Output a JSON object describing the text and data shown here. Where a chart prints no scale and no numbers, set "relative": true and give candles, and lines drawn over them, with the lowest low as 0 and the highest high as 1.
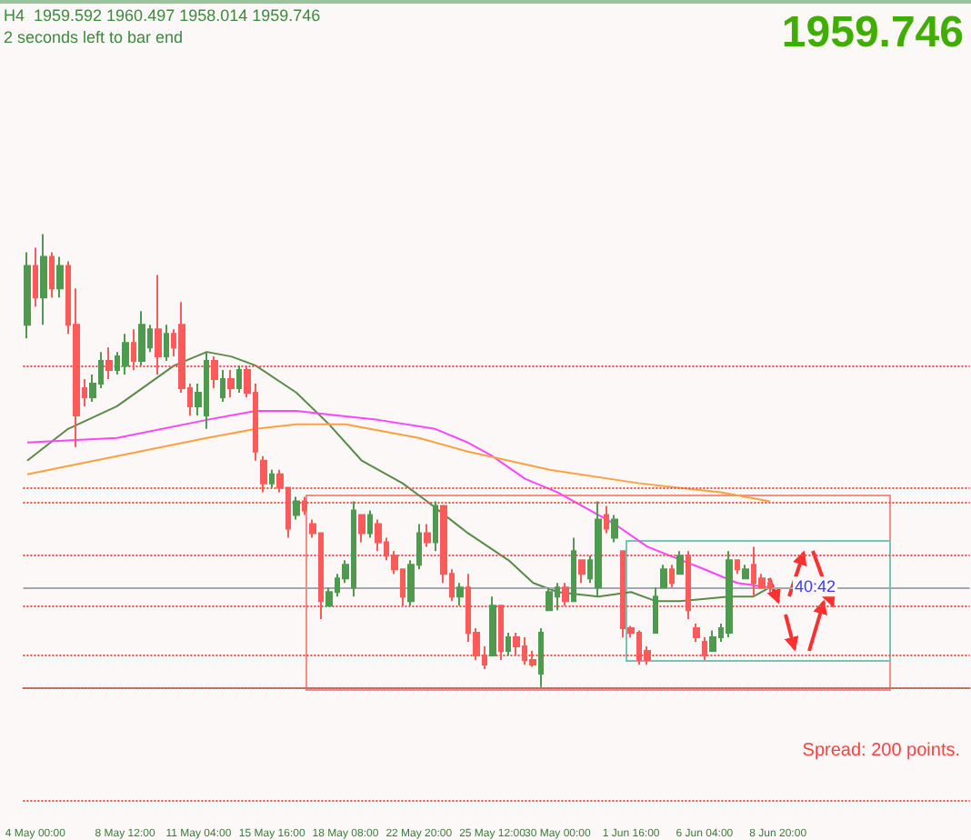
{
  "chart_data": {
    "type": "candlestick",
    "relative": true,
    "grid": false,
    "tick_labels": "x",
    "marker": "none",
    "annotations": [
      "H4  1959.592 1960.497 1958.014 1959.746",
      "2 seconds left to bar end",
      "1959.746",
      {
        "text": "40:42",
        "y": 0.22
      },
      "Spread: 200 points."
    ],
    "categories": [
      null,
      "4 May 00:00",
      null,
      null,
      null,
      null,
      null,
      null,
      null,
      null,
      null,
      null,
      "8 May 12:00",
      null,
      null,
      null,
      null,
      null,
      null,
      null,
      null,
      "11 May 04:00",
      null,
      null,
      null,
      null,
      null,
      null,
      null,
      null,
      "15 May 16:00",
      null,
      null,
      null,
      null,
      null,
      null,
      null,
      null,
      "18 May 08:00",
      null,
      null,
      null,
      null,
      null,
      null,
      null,
      null,
      "22 May 20:00",
      null,
      null,
      null,
      null,
      null,
      null,
      null,
      null,
      "25 May 12:00",
      null,
      null,
      null,
      null,
      null,
      null,
      null,
      "30 May 00:00",
      null,
      null,
      null,
      null,
      null,
      null,
      null,
      null,
      "1 Jun 16:00",
      null,
      null,
      null,
      null,
      null,
      null,
      null,
      null,
      "6 Jun 04:00",
      null,
      null,
      null,
      null,
      null,
      null,
      null,
      null,
      "8 Jun 20:00",
      null,
      null,
      null,
      null,
      null,
      null,
      null,
      null,
      null,
      null,
      null,
      null,
      null,
      null,
      null,
      null,
      null,
      null,
      null,
      null,
      null,
      null,
      null
    ],
    "ohlc": [
      [
        0.8,
        0.96,
        0.77,
        0.93
      ],
      [
        0.93,
        0.97,
        0.84,
        0.86
      ],
      [
        0.86,
        1.0,
        0.8,
        0.95
      ],
      [
        0.95,
        0.96,
        0.86,
        0.88
      ],
      [
        0.88,
        0.95,
        0.86,
        0.93
      ],
      [
        0.93,
        0.94,
        0.78,
        0.8
      ],
      [
        0.8,
        0.88,
        0.53,
        0.6
      ],
      [
        0.66,
        0.68,
        0.62,
        0.64
      ],
      [
        0.64,
        0.69,
        0.63,
        0.67
      ],
      [
        0.67,
        0.74,
        0.66,
        0.72
      ],
      [
        0.72,
        0.75,
        0.68,
        0.7
      ],
      [
        0.7,
        0.74,
        0.69,
        0.73
      ],
      [
        0.71,
        0.78,
        0.69,
        0.76
      ],
      [
        0.76,
        0.79,
        0.7,
        0.72
      ],
      [
        0.72,
        0.83,
        0.71,
        0.8
      ],
      [
        0.75,
        0.8,
        0.74,
        0.79
      ],
      [
        0.79,
        0.91,
        0.69,
        0.73
      ],
      [
        0.73,
        0.8,
        0.72,
        0.78
      ],
      [
        0.78,
        0.79,
        0.73,
        0.75
      ],
      [
        0.8,
        0.85,
        0.65,
        0.66
      ],
      [
        0.66,
        0.67,
        0.6,
        0.62
      ],
      [
        0.62,
        0.67,
        0.6,
        0.65
      ],
      [
        0.6,
        0.74,
        0.57,
        0.72
      ],
      [
        0.72,
        0.73,
        0.66,
        0.68
      ],
      [
        0.64,
        0.7,
        0.63,
        0.68
      ],
      [
        0.68,
        0.7,
        0.64,
        0.66
      ],
      [
        0.66,
        0.71,
        0.65,
        0.7
      ],
      [
        0.7,
        0.71,
        0.64,
        0.65
      ],
      [
        0.65,
        0.67,
        0.5,
        0.52
      ],
      [
        0.5,
        0.51,
        0.43,
        0.45
      ],
      [
        0.45,
        0.48,
        0.44,
        0.47
      ],
      [
        0.47,
        0.48,
        0.43,
        0.44
      ],
      [
        0.44,
        0.44,
        0.33,
        0.35
      ],
      [
        0.38,
        0.42,
        0.37,
        0.41
      ],
      [
        0.41,
        0.42,
        0.38,
        0.39
      ],
      [
        0.36,
        0.37,
        0.33,
        0.34
      ],
      [
        0.34,
        0.34,
        0.15,
        0.19
      ],
      [
        0.18,
        0.22,
        0.18,
        0.21
      ],
      [
        0.21,
        0.25,
        0.2,
        0.24
      ],
      [
        0.24,
        0.28,
        0.23,
        0.27
      ],
      [
        0.22,
        0.41,
        0.2,
        0.39
      ],
      [
        0.38,
        0.38,
        0.32,
        0.34
      ],
      [
        0.34,
        0.39,
        0.33,
        0.38
      ],
      [
        0.36,
        0.37,
        0.3,
        0.32
      ],
      [
        0.32,
        0.33,
        0.28,
        0.29
      ],
      [
        0.29,
        0.3,
        0.25,
        0.26
      ],
      [
        0.26,
        0.26,
        0.18,
        0.2
      ],
      [
        0.19,
        0.28,
        0.18,
        0.27
      ],
      [
        0.27,
        0.36,
        0.26,
        0.34
      ],
      [
        0.34,
        0.36,
        0.31,
        0.32
      ],
      [
        0.32,
        0.41,
        0.3,
        0.4
      ],
      [
        0.4,
        0.4,
        0.23,
        0.25
      ],
      [
        0.25,
        0.26,
        0.19,
        0.2
      ],
      [
        0.2,
        0.23,
        0.18,
        0.22
      ],
      [
        0.22,
        0.25,
        0.1,
        0.12
      ],
      [
        0.12,
        0.13,
        0.06,
        0.07
      ],
      [
        0.07,
        0.09,
        0.04,
        0.05
      ],
      [
        0.07,
        0.2,
        0.07,
        0.18
      ],
      [
        0.18,
        0.18,
        0.06,
        0.08
      ],
      [
        0.08,
        0.12,
        0.07,
        0.11
      ],
      [
        0.11,
        0.12,
        0.07,
        0.09
      ],
      [
        0.09,
        0.11,
        0.05,
        0.06
      ],
      [
        0.06,
        0.08,
        0.045,
        0.05
      ],
      [
        0.03,
        0.13,
        0.0,
        0.12
      ],
      [
        0.17,
        0.22,
        0.17,
        0.21
      ],
      [
        0.2,
        0.23,
        0.17,
        0.22
      ],
      [
        0.22,
        0.23,
        0.18,
        0.19
      ],
      [
        0.19,
        0.33,
        0.19,
        0.3
      ],
      [
        0.28,
        0.28,
        0.23,
        0.25
      ],
      [
        0.24,
        0.29,
        0.23,
        0.28
      ],
      [
        0.22,
        0.41,
        0.2,
        0.37
      ],
      [
        0.38,
        0.4,
        0.34,
        0.35
      ],
      [
        0.33,
        0.38,
        0.32,
        0.37
      ],
      [
        0.3,
        0.3,
        0.11,
        0.13
      ],
      [
        0.13,
        0.135,
        0.11,
        0.12
      ],
      [
        0.12,
        0.125,
        0.05,
        0.06
      ],
      [
        0.08,
        0.09,
        0.05,
        0.06
      ],
      [
        0.12,
        0.22,
        0.12,
        0.2
      ],
      [
        0.22,
        0.27,
        0.22,
        0.26
      ],
      [
        0.26,
        0.27,
        0.22,
        0.23
      ],
      [
        0.25,
        0.3,
        0.25,
        0.29
      ],
      [
        0.29,
        0.3,
        0.15,
        0.17
      ],
      [
        0.13,
        0.14,
        0.1,
        0.11
      ],
      [
        0.1,
        0.11,
        0.06,
        0.07
      ],
      [
        0.08,
        0.125,
        0.08,
        0.11
      ],
      [
        0.11,
        0.14,
        0.1,
        0.13
      ],
      [
        0.12,
        0.3,
        0.11,
        0.28
      ],
      [
        0.28,
        0.28,
        0.25,
        0.26
      ],
      [
        0.24,
        0.27,
        0.24,
        0.26
      ],
      [
        0.27,
        0.31,
        0.2,
        0.23
      ],
      [
        0.24,
        0.25,
        0.22,
        0.22
      ],
      [
        0.23,
        0.24,
        0.21,
        0.22
      ],
      null,
      null,
      null,
      null,
      null,
      null,
      null,
      null,
      null,
      null,
      null,
      null,
      null,
      null,
      null,
      null,
      null,
      null,
      null,
      null,
      null,
      null,
      null,
      null
    ],
    "series": [
      {
        "type": "line",
        "color": "#5a8a4a",
        "values": [
          0.5,
          null,
          null,
          null,
          null,
          0.57,
          null,
          null,
          null,
          null,
          null,
          0.62,
          null,
          null,
          null,
          null,
          null,
          null,
          0.71,
          null,
          null,
          null,
          0.74,
          null,
          null,
          0.73,
          null,
          null,
          0.71,
          null,
          null,
          null,
          null,
          0.65,
          null,
          null,
          null,
          0.58,
          null,
          null,
          null,
          0.5,
          null,
          null,
          null,
          null,
          0.45,
          null,
          null,
          0.41,
          null,
          null,
          null,
          null,
          0.34,
          null,
          null,
          null,
          null,
          0.28,
          null,
          null,
          0.23,
          null,
          null,
          0.21,
          null,
          null,
          null,
          null,
          0.2,
          null,
          null,
          null,
          0.21,
          null,
          null,
          0.19,
          null,
          null,
          0.19,
          null,
          null,
          null,
          null,
          null,
          0.2,
          null,
          null,
          0.2,
          null,
          0.22,
          null,
          null,
          null,
          null,
          null,
          null,
          null,
          null,
          null,
          null,
          null,
          null,
          null,
          null,
          null,
          null,
          null,
          null,
          null,
          null,
          null,
          null,
          null,
          null
        ]
      },
      {
        "type": "line",
        "color": "#ff44ff",
        "values": [
          0.54,
          null,
          null,
          null,
          null,
          null,
          null,
          null,
          null,
          null,
          null,
          0.55,
          null,
          null,
          null,
          null,
          null,
          null,
          null,
          null,
          null,
          null,
          0.59,
          null,
          null,
          null,
          null,
          null,
          0.61,
          null,
          null,
          null,
          null,
          0.61,
          null,
          null,
          null,
          null,
          0.6,
          null,
          null,
          null,
          null,
          0.59,
          null,
          null,
          null,
          null,
          null,
          null,
          0.57,
          null,
          null,
          null,
          0.54,
          null,
          null,
          0.51,
          null,
          null,
          null,
          0.46,
          null,
          null,
          null,
          0.43,
          null,
          null,
          null,
          null,
          null,
          null,
          0.36,
          null,
          null,
          null,
          0.31,
          null,
          null,
          null,
          null,
          null,
          null,
          0.26,
          null,
          null,
          null,
          0.23,
          null,
          null,
          null,
          0.22,
          null,
          null,
          null,
          null,
          null,
          null,
          null,
          null,
          null,
          null,
          null,
          null,
          null,
          null,
          null,
          null,
          null,
          null,
          null,
          null,
          null,
          null,
          null,
          null
        ]
      },
      {
        "type": "line",
        "color": "#ffa040",
        "values": [
          0.47,
          null,
          null,
          null,
          null,
          null,
          null,
          null,
          null,
          null,
          null,
          0.51,
          null,
          null,
          null,
          null,
          null,
          null,
          null,
          null,
          null,
          null,
          0.55,
          null,
          null,
          null,
          null,
          null,
          0.57,
          null,
          null,
          null,
          null,
          0.58,
          null,
          null,
          null,
          null,
          null,
          0.58,
          null,
          null,
          null,
          null,
          null,
          null,
          null,
          null,
          0.55,
          null,
          null,
          null,
          null,
          null,
          0.52,
          null,
          null,
          null,
          null,
          null,
          null,
          null,
          null,
          null,
          0.48,
          null,
          null,
          null,
          null,
          null,
          null,
          null,
          null,
          null,
          null,
          0.45,
          null,
          null,
          null,
          null,
          null,
          null,
          null,
          null,
          null,
          0.43,
          null,
          null,
          null,
          null,
          null,
          0.41,
          null,
          null,
          null,
          null,
          null,
          null,
          null,
          null,
          null,
          null,
          null,
          null,
          null,
          null,
          null,
          null,
          null,
          null,
          null,
          null,
          null,
          null,
          null,
          null
        ]
      }
    ],
    "ref_lines": [
      {
        "axis": "y",
        "value": 0.71,
        "color": "#ff4848",
        "line_style": "dotted"
      },
      {
        "axis": "y",
        "value": 0.44,
        "color": "#ff4848",
        "line_style": "dotted"
      },
      {
        "axis": "y",
        "value": 0.41,
        "color": "#ff4848",
        "line_style": "dotted"
      },
      {
        "axis": "y",
        "value": 0.29,
        "color": "#ff4848",
        "line_style": "dotted"
      },
      {
        "axis": "y",
        "value": 0.22,
        "color": "#a0a8b4",
        "line_style": "solid"
      },
      {
        "axis": "y",
        "value": 0.18,
        "color": "#ff4848",
        "line_style": "dotted"
      },
      {
        "axis": "y",
        "value": 0.07,
        "color": "#ff4848",
        "line_style": "dotted"
      },
      {
        "axis": "y",
        "value": 0.0,
        "color": "#ff4848",
        "line_style": "dotted"
      },
      {
        "axis": "y",
        "value": -0.25,
        "color": "#ff4848",
        "line_style": "dotted"
      }
    ]
  }
}
